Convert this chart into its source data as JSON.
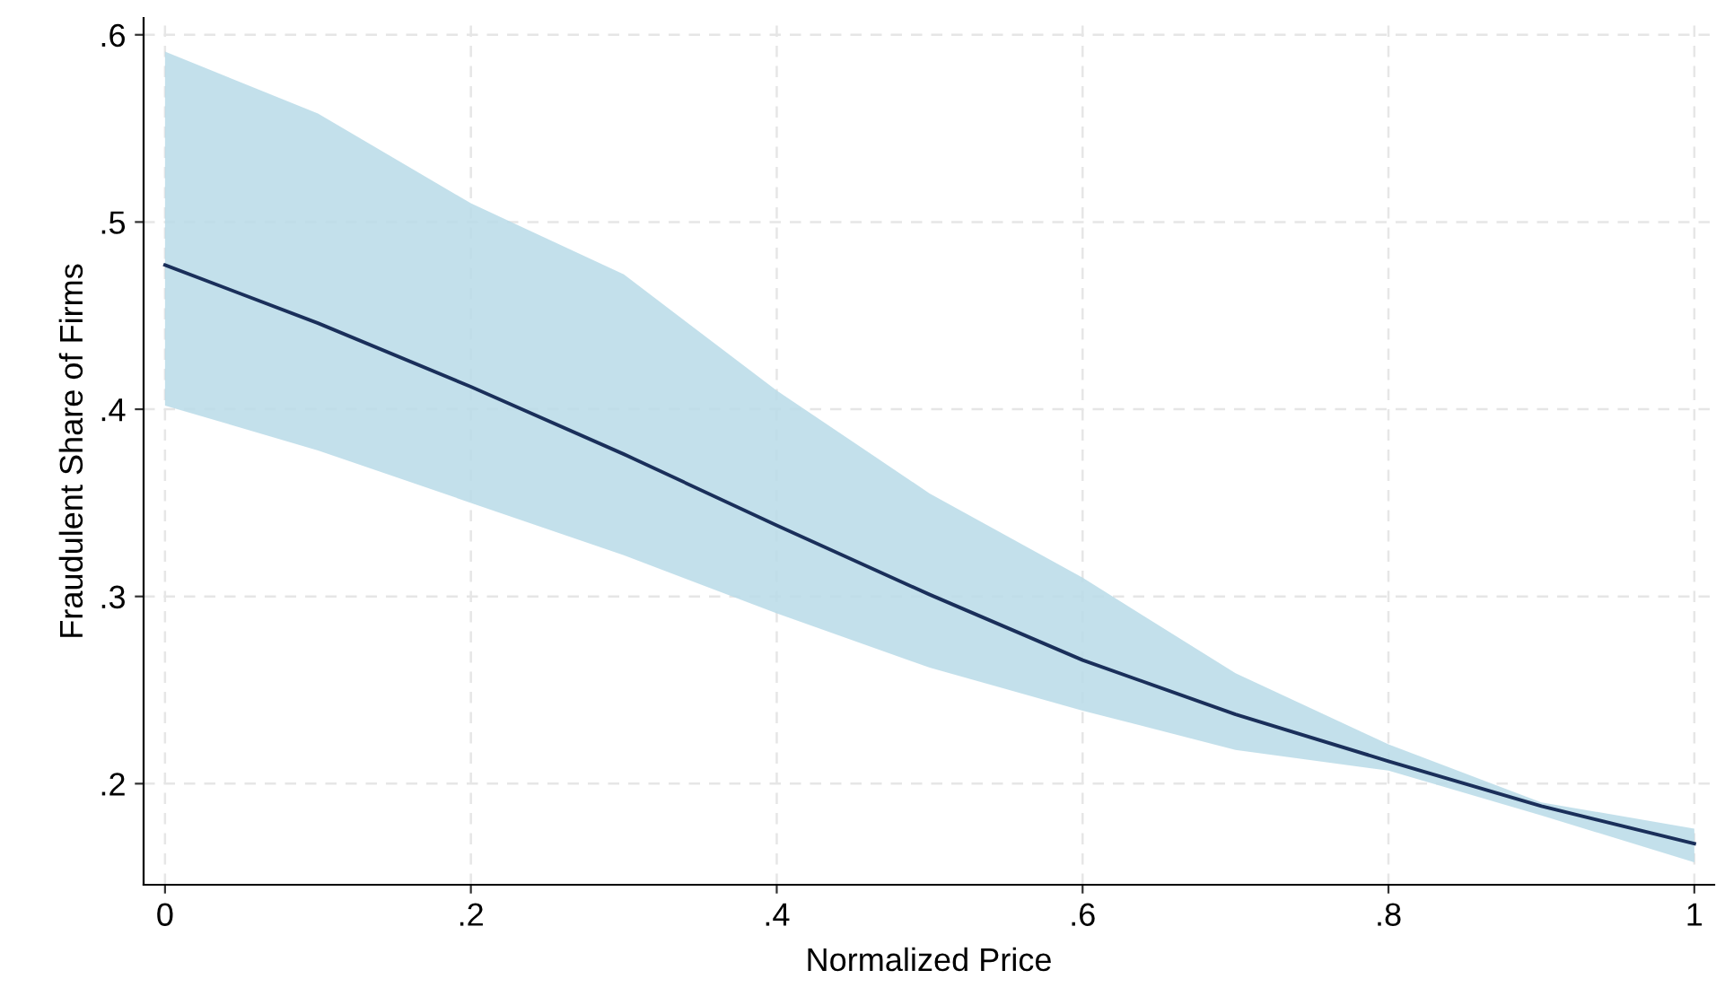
{
  "chart_data": {
    "type": "line",
    "xlabel": "Normalized Price",
    "ylabel": "Fraudulent Share of Firms",
    "x": [
      0,
      0.1,
      0.2,
      0.3,
      0.4,
      0.5,
      0.6,
      0.7,
      0.8,
      0.9,
      1
    ],
    "series": [
      {
        "color": "#1a2f5a",
        "values": [
          0.477,
          0.446,
          0.412,
          0.376,
          0.338,
          0.301,
          0.266,
          0.237,
          0.212,
          0.188,
          0.168
        ],
        "upper": [
          0.591,
          0.558,
          0.51,
          0.472,
          0.41,
          0.355,
          0.31,
          0.259,
          0.221,
          0.19,
          0.176
        ],
        "lower": [
          0.402,
          0.378,
          0.35,
          0.322,
          0.291,
          0.262,
          0.239,
          0.218,
          0.207,
          0.183,
          0.158
        ]
      }
    ],
    "xlim": [
      -0.014,
      1.013
    ],
    "ylim": [
      0.146,
      0.609
    ],
    "xticks": [
      {
        "value": 0,
        "label": "0"
      },
      {
        "value": 0.2,
        "label": ".2"
      },
      {
        "value": 0.4,
        "label": ".4"
      },
      {
        "value": 0.6,
        "label": ".6"
      },
      {
        "value": 0.8,
        "label": ".8"
      },
      {
        "value": 1,
        "label": "1"
      }
    ],
    "yticks": [
      {
        "value": 0.2,
        "label": ".2"
      },
      {
        "value": 0.3,
        "label": ".3"
      },
      {
        "value": 0.4,
        "label": ".4"
      },
      {
        "value": 0.5,
        "label": ".5"
      },
      {
        "value": 0.6,
        "label": ".6"
      }
    ],
    "grid": true,
    "marker": "none",
    "line_style": "solid",
    "legend": false
  }
}
